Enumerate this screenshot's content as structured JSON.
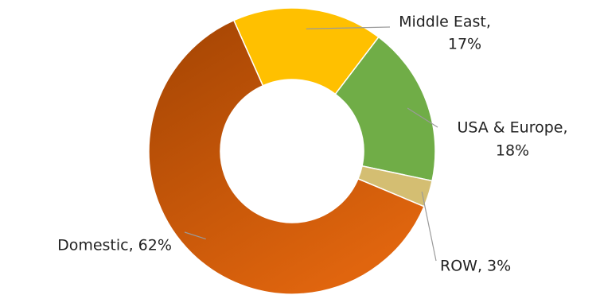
{
  "chart_data": {
    "type": "pie",
    "donut": true,
    "legend": "none",
    "slices": [
      {
        "label_lines": [
          "Middle East,",
          "17%"
        ],
        "name": "Middle East",
        "value": 17,
        "color": "#FFC000"
      },
      {
        "label_lines": [
          "USA & Europe,",
          "18%"
        ],
        "name": "USA & Europe",
        "value": 18,
        "color": "#70AD47"
      },
      {
        "label_lines": [
          "ROW, 3%"
        ],
        "name": "ROW",
        "value": 3,
        "color": "#D4BE72"
      },
      {
        "label_lines": [
          "Domestic, 62%"
        ],
        "name": "Domestic",
        "value": 62,
        "color": "#D4600C"
      }
    ]
  }
}
